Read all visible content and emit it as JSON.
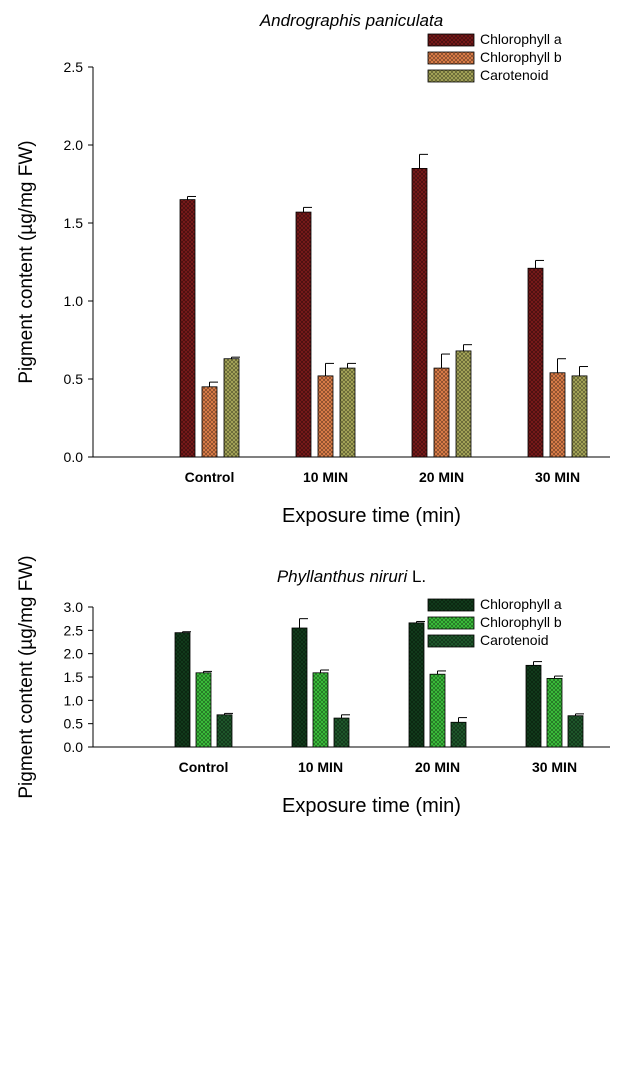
{
  "chart_data": [
    {
      "type": "bar",
      "title": "Andrographis paniculata",
      "title_suffix": "",
      "xlabel": "Exposure time (min)",
      "ylabel": "Pigment content (µg/mg FW)",
      "categories": [
        "Control",
        "10 MIN",
        "20 MIN",
        "30 MIN"
      ],
      "ylim": [
        0,
        2.5
      ],
      "yticks": [
        "0.0",
        "0.5",
        "1.0",
        "1.5",
        "2.0",
        "2.5"
      ],
      "ytick_values": [
        0,
        0.5,
        1.0,
        1.5,
        2.0,
        2.5
      ],
      "grid": false,
      "legend_position": "top-right",
      "series": [
        {
          "name": "Chlorophyll a",
          "color": "#7a1a1a",
          "values": [
            1.65,
            1.57,
            1.85,
            1.21
          ],
          "errors": [
            0.02,
            0.03,
            0.09,
            0.05
          ]
        },
        {
          "name": "Chlorophyll b",
          "color": "#e0804a",
          "values": [
            0.45,
            0.52,
            0.57,
            0.54
          ],
          "errors": [
            0.03,
            0.08,
            0.09,
            0.09
          ]
        },
        {
          "name": "Carotenoid",
          "color": "#a8a85a",
          "values": [
            0.63,
            0.57,
            0.68,
            0.52
          ],
          "errors": [
            0.01,
            0.03,
            0.04,
            0.06
          ]
        }
      ]
    },
    {
      "type": "bar",
      "title": "Phyllanthus niruri",
      "title_suffix": " L.",
      "xlabel": "Exposure time (min)",
      "ylabel": "Pigment content (µg/mg FW)",
      "categories": [
        "Control",
        "10 MIN",
        "20 MIN",
        "30 MIN"
      ],
      "ylim": [
        0,
        3.0
      ],
      "yticks": [
        "0.0",
        "0.5",
        "1.0",
        "1.5",
        "2.0",
        "2.5",
        "3.0"
      ],
      "ytick_values": [
        0,
        0.5,
        1.0,
        1.5,
        2.0,
        2.5,
        3.0
      ],
      "grid": false,
      "legend_position": "top-right",
      "series": [
        {
          "name": "Chlorophyll a",
          "color": "#123d1c",
          "values": [
            2.45,
            2.55,
            2.66,
            1.75
          ],
          "errors": [
            0.02,
            0.2,
            0.03,
            0.08
          ]
        },
        {
          "name": "Chlorophyll b",
          "color": "#3cc23c",
          "values": [
            1.59,
            1.59,
            1.56,
            1.47
          ],
          "errors": [
            0.03,
            0.06,
            0.07,
            0.05
          ]
        },
        {
          "name": "Carotenoid",
          "color": "#1f5a2c",
          "values": [
            0.69,
            0.62,
            0.53,
            0.67
          ],
          "errors": [
            0.03,
            0.07,
            0.1,
            0.04
          ]
        }
      ]
    }
  ]
}
